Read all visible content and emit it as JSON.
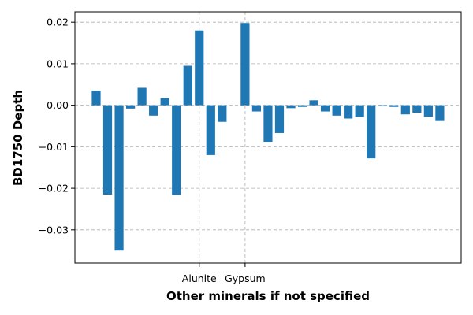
{
  "chart_data": {
    "type": "bar",
    "title": "",
    "xlabel": "Other minerals if not specified",
    "ylabel": "BD1750 Depth",
    "bar_color": "#1f77b4",
    "grid": true,
    "grid_style": "dashed",
    "ylim": [
      -0.038,
      0.0225
    ],
    "yticks": [
      {
        "value": 0.02,
        "label": "0.02"
      },
      {
        "value": 0.01,
        "label": "0.01"
      },
      {
        "value": 0.0,
        "label": "0.00"
      },
      {
        "value": -0.01,
        "label": "−0.01"
      },
      {
        "value": -0.02,
        "label": "−0.02"
      },
      {
        "value": -0.03,
        "label": "−0.03"
      }
    ],
    "xtick_labels": [
      {
        "index": 9,
        "label": "Alunite"
      },
      {
        "index": 13,
        "label": "Gypsum"
      }
    ],
    "values": [
      0.0035,
      -0.0215,
      -0.035,
      -0.0008,
      0.0042,
      -0.0025,
      0.0017,
      -0.0216,
      0.0095,
      0.018,
      -0.012,
      -0.004,
      0.0,
      0.0198,
      -0.0015,
      -0.0088,
      -0.0067,
      -0.0007,
      -0.0004,
      0.0012,
      -0.0015,
      -0.0025,
      -0.0032,
      -0.0028,
      -0.0128,
      -0.0002,
      -0.0004,
      -0.0022,
      -0.0018,
      -0.0028,
      -0.0038
    ]
  }
}
